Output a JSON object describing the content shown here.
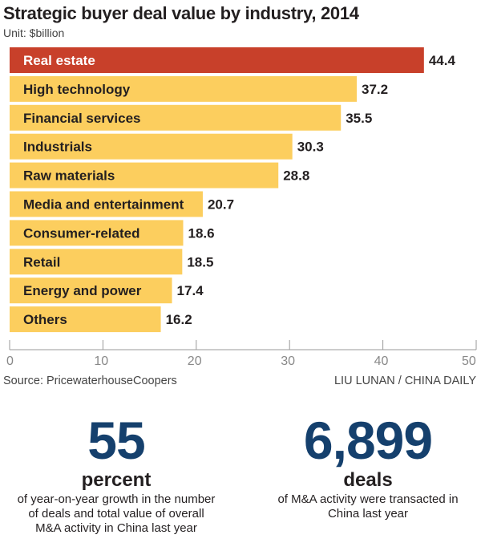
{
  "chart_data": {
    "type": "bar",
    "orientation": "horizontal",
    "title": "Strategic buyer deal value by industry, 2014",
    "subtitle": "Unit: $billion",
    "categories": [
      "Real estate",
      "High technology",
      "Financial services",
      "Industrials",
      "Raw materials",
      "Media and entertainment",
      "Consumer-related",
      "Retail",
      "Energy and power",
      "Others"
    ],
    "values": [
      44.4,
      37.2,
      35.5,
      30.3,
      28.8,
      20.7,
      18.6,
      18.5,
      17.4,
      16.2
    ],
    "value_labels": [
      "44.4",
      "37.2",
      "35.5",
      "30.3",
      "28.8",
      "20.7",
      "18.6",
      "18.5",
      "17.4",
      "16.2"
    ],
    "xlim": [
      0,
      50
    ],
    "xticks": [
      "0",
      "10",
      "20",
      "30",
      "40",
      "50"
    ],
    "highlight_index": 0,
    "colors": {
      "highlight": "#c8402a",
      "bar": "#fcce5e",
      "highlight_text": "#ffffff",
      "bar_text": "#231f20",
      "axis": "#999999"
    },
    "grid": false
  },
  "footer": {
    "source": "Source: PricewaterhouseCoopers",
    "credit": "LIU LUNAN / CHINA DAILY"
  },
  "stats": {
    "left": {
      "number": "55",
      "unit": "percent",
      "description": "of year-on-year growth in the number of deals and total value of overall M&A activity in China last year"
    },
    "right": {
      "number": "6,899",
      "unit": "deals",
      "description": "of M&A activity were transacted in China last year"
    }
  }
}
